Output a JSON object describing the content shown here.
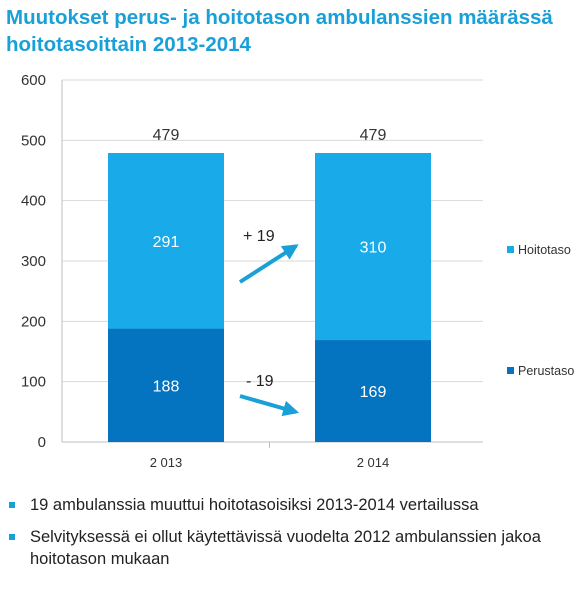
{
  "title": {
    "line1": "Muutokset perus- ja hoitotason ambulanssien määrässä",
    "line2": "hoitotasoittain 2013-2014"
  },
  "colors": {
    "title": "#1aa0d8",
    "hoitotaso": "#19aaea",
    "perustaso": "#0574c0",
    "arrow": "#1aa0d8"
  },
  "chart_data": {
    "type": "bar",
    "stacked": true,
    "categories": [
      "2 013",
      "2 014"
    ],
    "series": [
      {
        "name": "Perustaso",
        "values": [
          188,
          169
        ],
        "color": "#0574c0"
      },
      {
        "name": "Hoitotaso",
        "values": [
          291,
          310
        ],
        "color": "#19aaea"
      }
    ],
    "totals": [
      479,
      479
    ],
    "ylim": [
      0,
      600
    ],
    "yticks": [
      0,
      100,
      200,
      300,
      400,
      500,
      600
    ],
    "grid": true,
    "legend": "right",
    "annotations": [
      {
        "text": "+ 19",
        "series": "Hoitotaso",
        "direction": "up"
      },
      {
        "text": "- 19",
        "series": "Perustaso",
        "direction": "down"
      }
    ]
  },
  "bullets": [
    "19 ambulanssia muuttui hoitotasoisiksi 2013-2014 vertailussa",
    "Selvityksessä ei ollut käytettävissä vuodelta 2012 ambulanssien jakoa hoitotason mukaan"
  ]
}
